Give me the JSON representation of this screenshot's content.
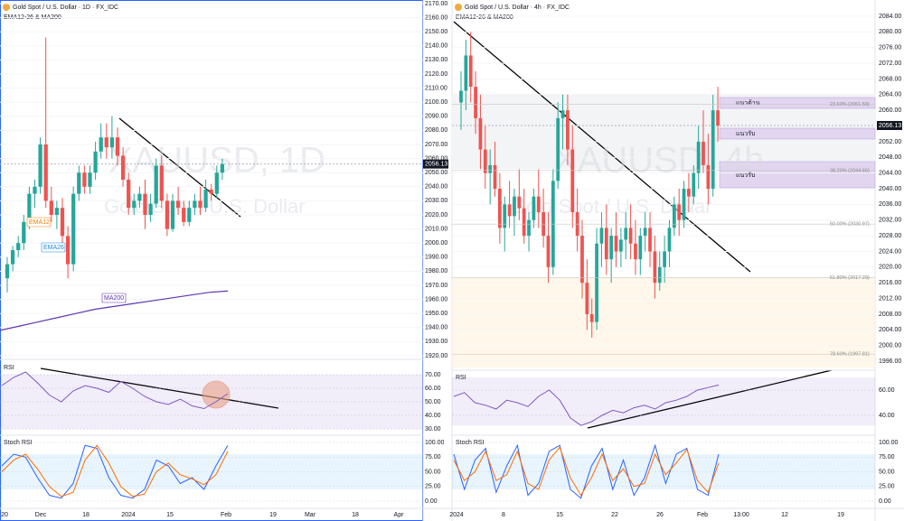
{
  "left": {
    "header": "Gold Spot / U.S. Dollar · 1D · FX_IDC",
    "indicator": "EMA12-26 & MA200",
    "watermark_symbol": "XAUUSD, 1D",
    "watermark_name": "Gold Spot / U.S. Dollar",
    "last_price": {
      "value": 2056.13,
      "label": "2056.13"
    },
    "ylim": [
      1914,
      2173
    ],
    "yticks": [
      {
        "value": 2170,
        "label": "2170.00"
      },
      {
        "value": 2160,
        "label": "2160.00"
      },
      {
        "value": 2150,
        "label": "2150.00"
      },
      {
        "value": 2140,
        "label": "2140.00"
      },
      {
        "value": 2130,
        "label": "2130.00"
      },
      {
        "value": 2120,
        "label": "2120.00"
      },
      {
        "value": 2110,
        "label": "2110.00"
      },
      {
        "value": 2100,
        "label": "2100.00"
      },
      {
        "value": 2090,
        "label": "2090.00"
      },
      {
        "value": 2080,
        "label": "2080.00"
      },
      {
        "value": 2070,
        "label": "2070.00"
      },
      {
        "value": 2060,
        "label": "2060.00"
      },
      {
        "value": 2050,
        "label": "2050.00"
      },
      {
        "value": 2040,
        "label": "2040.00"
      },
      {
        "value": 2030,
        "label": "2030.00"
      },
      {
        "value": 2020,
        "label": "2020.00"
      },
      {
        "value": 2010,
        "label": "2010.00"
      },
      {
        "value": 2000,
        "label": "2000.00"
      },
      {
        "value": 1990,
        "label": "1990.00"
      },
      {
        "value": 1980,
        "label": "1980.00"
      },
      {
        "value": 1970,
        "label": "1970.00"
      },
      {
        "value": 1960,
        "label": "1960.00"
      },
      {
        "value": 1950,
        "label": "1950.00"
      },
      {
        "value": 1940,
        "label": "1940.00"
      },
      {
        "value": 1930,
        "label": "1930.00"
      },
      {
        "value": 1920,
        "label": "1920.00"
      }
    ],
    "ema_labels": [
      "EMA12",
      "EMA26",
      "MA200"
    ],
    "ohlc": [
      [
        1975,
        1990,
        1965,
        1985
      ],
      [
        1985,
        1998,
        1980,
        1995
      ],
      [
        1995,
        2005,
        1990,
        2000
      ],
      [
        2000,
        2020,
        1995,
        2015
      ],
      [
        2015,
        2040,
        2010,
        2035
      ],
      [
        2035,
        2045,
        2025,
        2040
      ],
      [
        2040,
        2075,
        2035,
        2070
      ],
      [
        2070,
        2146,
        2025,
        2030
      ],
      [
        2030,
        2040,
        2015,
        2020
      ],
      [
        2020,
        2030,
        2010,
        2025
      ],
      [
        2025,
        2032,
        2000,
        2005
      ],
      [
        2005,
        2012,
        1975,
        1985
      ],
      [
        1985,
        2040,
        1980,
        2035
      ],
      [
        2035,
        2055,
        2030,
        2050
      ],
      [
        2050,
        2055,
        2035,
        2040
      ],
      [
        2040,
        2055,
        2035,
        2050
      ],
      [
        2050,
        2072,
        2045,
        2065
      ],
      [
        2065,
        2085,
        2060,
        2075
      ],
      [
        2075,
        2085,
        2060,
        2068
      ],
      [
        2068,
        2090,
        2060,
        2075
      ],
      [
        2075,
        2082,
        2055,
        2062
      ],
      [
        2062,
        2068,
        2040,
        2045
      ],
      [
        2045,
        2050,
        2020,
        2025
      ],
      [
        2025,
        2035,
        2020,
        2030
      ],
      [
        2030,
        2040,
        2025,
        2035
      ],
      [
        2035,
        2045,
        2010,
        2020
      ],
      [
        2020,
        2035,
        2015,
        2028
      ],
      [
        2028,
        2060,
        2025,
        2055
      ],
      [
        2055,
        2062,
        2025,
        2030
      ],
      [
        2030,
        2035,
        2005,
        2010
      ],
      [
        2010,
        2035,
        2008,
        2030
      ],
      [
        2030,
        2040,
        2020,
        2025
      ],
      [
        2025,
        2030,
        2012,
        2015
      ],
      [
        2015,
        2030,
        2012,
        2025
      ],
      [
        2025,
        2035,
        2020,
        2030
      ],
      [
        2030,
        2040,
        2020,
        2025
      ],
      [
        2025,
        2045,
        2022,
        2038
      ],
      [
        2038,
        2042,
        2030,
        2035
      ],
      [
        2035,
        2055,
        2032,
        2050
      ],
      [
        2050,
        2060,
        2045,
        2056.13
      ]
    ],
    "ma200": [
      1938,
      1941,
      1944,
      1947,
      1950,
      1953,
      1955,
      1957,
      1959,
      1961,
      1963,
      1965,
      1966
    ],
    "rsi_title": "RSI",
    "rsi_ylim": [
      27,
      76
    ],
    "rsi_ticks": [
      {
        "value": 70,
        "label": "70.00"
      },
      {
        "value": 60,
        "label": "60.00"
      },
      {
        "value": 50,
        "label": "50.00"
      },
      {
        "value": 40,
        "label": "40.00"
      },
      {
        "value": 30,
        "label": "30.00"
      }
    ],
    "rsi": [
      62,
      68,
      72,
      64,
      55,
      50,
      58,
      62,
      60,
      57,
      65,
      60,
      54,
      50,
      48,
      52,
      47,
      45,
      50,
      56
    ],
    "stoch_title": "Stoch RSI",
    "stoch_ylim": [
      -2,
      104
    ],
    "stoch_ticks": [
      {
        "value": 100,
        "label": "100.00"
      },
      {
        "value": 75,
        "label": "75.00"
      },
      {
        "value": 50,
        "label": "50.00"
      },
      {
        "value": 25,
        "label": "25.00"
      },
      {
        "value": 0,
        "label": "0.00"
      }
    ],
    "stoch_k": [
      60,
      80,
      75,
      40,
      10,
      5,
      30,
      95,
      90,
      40,
      10,
      5,
      20,
      70,
      60,
      30,
      40,
      20,
      60,
      95
    ],
    "stoch_d": [
      50,
      70,
      80,
      55,
      25,
      8,
      15,
      70,
      95,
      65,
      25,
      8,
      12,
      50,
      65,
      45,
      38,
      28,
      45,
      85
    ],
    "xticks": [
      "20",
      "Dec",
      "18",
      "2024",
      "15",
      "Feb",
      "19",
      "Mar",
      "18",
      "Apr"
    ]
  },
  "right": {
    "header": "Gold Spot / U.S. Dollar · 4h · FX_IDC",
    "indicator": "EMA12-26 & MA200",
    "watermark_symbol": "XAUUSD, 4h",
    "watermark_name": "Gold Spot / U.S. Dollar",
    "last_price": {
      "value": 2056.13,
      "label": "2056.13"
    },
    "ylim": [
      1994,
      2088
    ],
    "yticks": [
      {
        "value": 2084,
        "label": "2084.00"
      },
      {
        "value": 2080,
        "label": "2080.00"
      },
      {
        "value": 2076,
        "label": "2076.00"
      },
      {
        "value": 2072,
        "label": "2072.00"
      },
      {
        "value": 2068,
        "label": "2068.00"
      },
      {
        "value": 2064,
        "label": "2064.00"
      },
      {
        "value": 2060,
        "label": "2060.00"
      },
      {
        "value": 2056,
        "label": "2056.00"
      },
      {
        "value": 2052,
        "label": "2052.00"
      },
      {
        "value": 2048,
        "label": "2048.00"
      },
      {
        "value": 2044,
        "label": "2044.00"
      },
      {
        "value": 2040,
        "label": "2040.00"
      },
      {
        "value": 2036,
        "label": "2036.00"
      },
      {
        "value": 2032,
        "label": "2032.00"
      },
      {
        "value": 2028,
        "label": "2028.00"
      },
      {
        "value": 2024,
        "label": "2024.00"
      },
      {
        "value": 2020,
        "label": "2020.00"
      },
      {
        "value": 2016,
        "label": "2016.00"
      },
      {
        "value": 2012,
        "label": "2012.00"
      },
      {
        "value": 2008,
        "label": "2008.00"
      },
      {
        "value": 2004,
        "label": "2004.00"
      },
      {
        "value": 2000,
        "label": "2000.00"
      },
      {
        "value": 1996,
        "label": "1996.00"
      }
    ],
    "zones": [
      "แนวต้าน",
      "แนวรับ",
      "แนวรับ"
    ],
    "fib": [
      {
        "value": 2061.5,
        "label": "23.60% (2061.50)"
      },
      {
        "value": 2044.65,
        "label": "38.20% (2044.65)"
      },
      {
        "value": 2030.97,
        "label": "50.00% (2030.97)"
      },
      {
        "value": 2017.29,
        "label": "61.80% (2017.29)"
      },
      {
        "value": 1997.81,
        "label": "78.60% (1997.81)"
      }
    ],
    "ohlc": [
      [
        2062,
        2070,
        2055,
        2065
      ],
      [
        2065,
        2078,
        2060,
        2074
      ],
      [
        2074,
        2080,
        2062,
        2066
      ],
      [
        2066,
        2070,
        2054,
        2058
      ],
      [
        2058,
        2064,
        2045,
        2050
      ],
      [
        2050,
        2056,
        2040,
        2044
      ],
      [
        2044,
        2050,
        2036,
        2046
      ],
      [
        2046,
        2052,
        2038,
        2040
      ],
      [
        2040,
        2044,
        2026,
        2030
      ],
      [
        2030,
        2038,
        2024,
        2036
      ],
      [
        2036,
        2042,
        2030,
        2033
      ],
      [
        2033,
        2040,
        2028,
        2038
      ],
      [
        2038,
        2045,
        2032,
        2035
      ],
      [
        2035,
        2040,
        2026,
        2028
      ],
      [
        2028,
        2034,
        2024,
        2032
      ],
      [
        2032,
        2040,
        2030,
        2038
      ],
      [
        2038,
        2045,
        2030,
        2034
      ],
      [
        2034,
        2040,
        2025,
        2028
      ],
      [
        2028,
        2034,
        2016,
        2020
      ],
      [
        2020,
        2045,
        2018,
        2042
      ],
      [
        2042,
        2062,
        2040,
        2058
      ],
      [
        2058,
        2064,
        2050,
        2060
      ],
      [
        2060,
        2064,
        2046,
        2050
      ],
      [
        2050,
        2056,
        2030,
        2034
      ],
      [
        2034,
        2040,
        2024,
        2028
      ],
      [
        2028,
        2032,
        2012,
        2016
      ],
      [
        2016,
        2022,
        2004,
        2008
      ],
      [
        2008,
        2012,
        2002,
        2006
      ],
      [
        2006,
        2030,
        2004,
        2026
      ],
      [
        2026,
        2034,
        2020,
        2030
      ],
      [
        2030,
        2036,
        2018,
        2022
      ],
      [
        2022,
        2030,
        2016,
        2028
      ],
      [
        2028,
        2034,
        2020,
        2024
      ],
      [
        2024,
        2030,
        2020,
        2027
      ],
      [
        2027,
        2034,
        2022,
        2030
      ],
      [
        2030,
        2036,
        2022,
        2026
      ],
      [
        2026,
        2032,
        2018,
        2022
      ],
      [
        2022,
        2030,
        2018,
        2028
      ],
      [
        2028,
        2034,
        2024,
        2030
      ],
      [
        2030,
        2034,
        2020,
        2024
      ],
      [
        2024,
        2028,
        2012,
        2016
      ],
      [
        2016,
        2024,
        2014,
        2020
      ],
      [
        2020,
        2028,
        2016,
        2024
      ],
      [
        2024,
        2032,
        2020,
        2030
      ],
      [
        2030,
        2038,
        2028,
        2036
      ],
      [
        2036,
        2040,
        2028,
        2032
      ],
      [
        2032,
        2042,
        2030,
        2040
      ],
      [
        2040,
        2044,
        2034,
        2038
      ],
      [
        2038,
        2046,
        2036,
        2044
      ],
      [
        2044,
        2056,
        2040,
        2052
      ],
      [
        2052,
        2060,
        2044,
        2046
      ],
      [
        2046,
        2054,
        2036,
        2040
      ],
      [
        2040,
        2064,
        2038,
        2060
      ],
      [
        2060,
        2066,
        2052,
        2056.13
      ]
    ],
    "rsi_title": "RSI",
    "rsi_ylim": [
      32,
      72
    ],
    "rsi_ticks": [
      {
        "value": 60,
        "label": "60.00"
      },
      {
        "value": 40,
        "label": "40.00"
      }
    ],
    "rsi": [
      55,
      58,
      50,
      48,
      45,
      52,
      50,
      47,
      55,
      60,
      52,
      38,
      32,
      35,
      40,
      44,
      42,
      46,
      48,
      45,
      50,
      52,
      55,
      60,
      62,
      64
    ],
    "stoch_title": "Stoch RSI",
    "stoch_ylim": [
      -2,
      104
    ],
    "stoch_ticks": [
      {
        "value": 100,
        "label": "100.00"
      },
      {
        "value": 75,
        "label": "75.00"
      },
      {
        "value": 50,
        "label": "50.00"
      },
      {
        "value": 25,
        "label": "25.00"
      },
      {
        "value": 0,
        "label": "0.00"
      }
    ],
    "stoch_k": [
      80,
      20,
      70,
      90,
      15,
      60,
      95,
      10,
      30,
      85,
      95,
      20,
      5,
      60,
      90,
      20,
      70,
      10,
      40,
      95,
      30,
      80,
      90,
      20,
      10,
      80
    ],
    "stoch_d": [
      70,
      35,
      50,
      85,
      35,
      45,
      85,
      30,
      20,
      70,
      92,
      40,
      10,
      40,
      80,
      35,
      55,
      25,
      30,
      80,
      45,
      65,
      88,
      35,
      15,
      65
    ],
    "xticks": [
      "2024",
      "8",
      "15",
      "22",
      "26",
      "Feb",
      "13:00",
      "12",
      "19"
    ]
  }
}
